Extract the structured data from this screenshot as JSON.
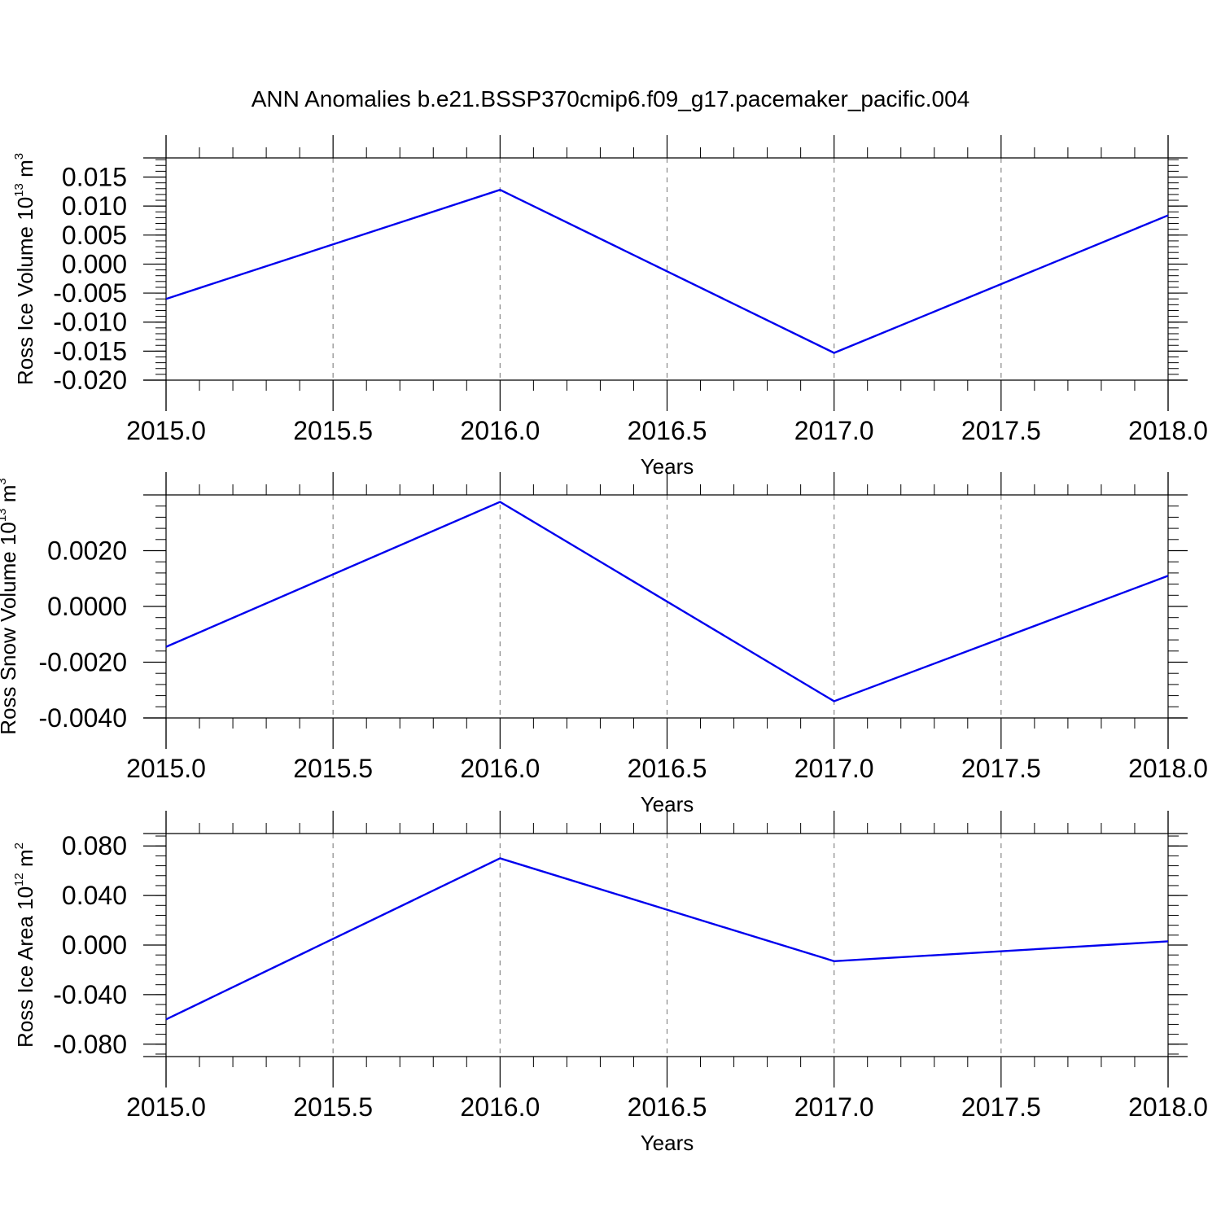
{
  "title": "ANN Anomalies b.e21.BSSP370cmip6.f09_g17.pacemaker_pacific.004",
  "chart_data": [
    {
      "type": "line",
      "xlabel": "Years",
      "ylabel": {
        "text": "Ross Ice Volume 10",
        "exponent": "13",
        "unit": " m",
        "unit_exponent": "3"
      },
      "xlim": [
        2015.0,
        2018.0
      ],
      "ylim": [
        -0.02,
        0.0183
      ],
      "x_ticks": [
        "2015.0",
        "2015.5",
        "2016.0",
        "2016.5",
        "2017.0",
        "2017.5",
        "2018.0"
      ],
      "y_ticks": [
        "0.015",
        "0.010",
        "0.005",
        "0.000",
        "-0.005",
        "-0.010",
        "-0.015",
        "-0.020"
      ],
      "y_tick_values": [
        0.015,
        0.01,
        0.005,
        0.0,
        -0.005,
        -0.01,
        -0.015,
        -0.02
      ],
      "x": [
        2015.0,
        2016.0,
        2017.0,
        2018.0
      ],
      "series": [
        {
          "values": [
            -0.006,
            0.0128,
            -0.0153,
            0.0084
          ],
          "color": "#0000ee"
        }
      ],
      "grid": "x-dashed"
    },
    {
      "type": "line",
      "xlabel": "Years",
      "ylabel": {
        "text": "Ross Snow Volume 10",
        "exponent": "13",
        "unit": " m",
        "unit_exponent": "3"
      },
      "xlim": [
        2015.0,
        2018.0
      ],
      "ylim": [
        -0.004,
        0.004
      ],
      "x_ticks": [
        "2015.0",
        "2015.5",
        "2016.0",
        "2016.5",
        "2017.0",
        "2017.5",
        "2018.0"
      ],
      "y_ticks": [
        "0.0020",
        "0.0000",
        "-0.0020",
        "-0.0040"
      ],
      "y_tick_values": [
        0.002,
        0.0,
        -0.002,
        -0.004
      ],
      "x": [
        2015.0,
        2016.0,
        2017.0,
        2018.0
      ],
      "series": [
        {
          "values": [
            -0.00145,
            0.00375,
            -0.0034,
            0.0011
          ],
          "color": "#0000ee"
        }
      ],
      "grid": "x-dashed"
    },
    {
      "type": "line",
      "xlabel": "Years",
      "ylabel": {
        "text": "Ross Ice Area 10",
        "exponent": "12",
        "unit": " m",
        "unit_exponent": "2"
      },
      "xlim": [
        2015.0,
        2018.0
      ],
      "ylim": [
        -0.09,
        0.09
      ],
      "x_ticks": [
        "2015.0",
        "2015.5",
        "2016.0",
        "2016.5",
        "2017.0",
        "2017.5",
        "2018.0"
      ],
      "y_ticks": [
        "0.080",
        "0.040",
        "0.000",
        "-0.040",
        "-0.080"
      ],
      "y_tick_values": [
        0.08,
        0.04,
        0.0,
        -0.04,
        -0.08
      ],
      "x": [
        2015.0,
        2016.0,
        2017.0,
        2018.0
      ],
      "series": [
        {
          "values": [
            -0.06,
            0.07,
            -0.013,
            0.003
          ],
          "color": "#0000ee"
        }
      ],
      "grid": "x-dashed"
    }
  ]
}
